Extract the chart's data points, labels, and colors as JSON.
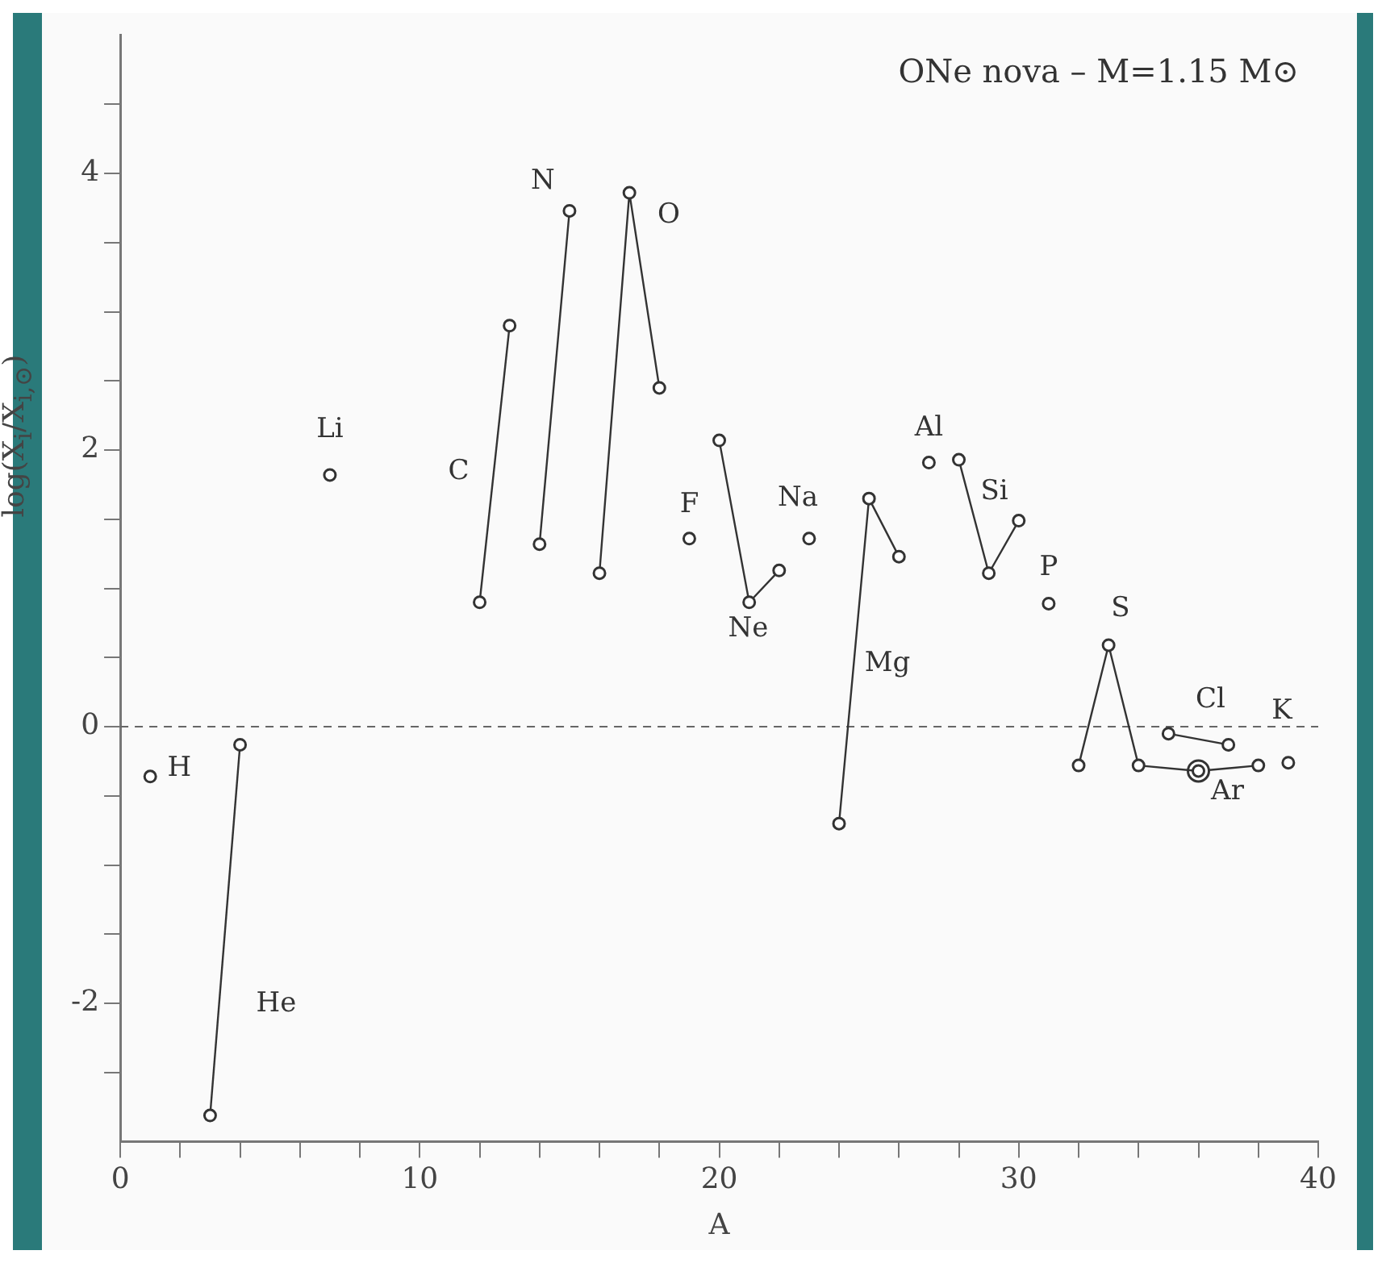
{
  "chart_data": {
    "type": "line",
    "xlabel": "A",
    "ylabel": "log(X$_{i}$/X$_{i,⊙}$)",
    "annotations": [
      "ONe nova – M=1.15 M⊙"
    ],
    "series": [
      {
        "type": "scatter",
        "name": "H",
        "color": "#333333",
        "x": [
          1
        ],
        "values": [
          -0.36
        ]
      },
      {
        "name": "He",
        "color": "#333333",
        "x": [
          3,
          4
        ],
        "values": [
          -2.81,
          -0.13
        ]
      },
      {
        "type": "scatter",
        "name": "Li",
        "color": "#333333",
        "x": [
          7
        ],
        "values": [
          1.82
        ]
      },
      {
        "name": "C",
        "color": "#333333",
        "x": [
          12,
          13
        ],
        "values": [
          0.9,
          2.9
        ]
      },
      {
        "name": "N",
        "color": "#333333",
        "x": [
          14,
          15
        ],
        "values": [
          1.32,
          3.73
        ]
      },
      {
        "name": "O",
        "color": "#333333",
        "x": [
          16,
          17,
          18
        ],
        "values": [
          1.11,
          3.86,
          2.45
        ]
      },
      {
        "type": "scatter",
        "name": "F",
        "color": "#333333",
        "x": [
          19
        ],
        "values": [
          1.36
        ]
      },
      {
        "name": "Ne",
        "color": "#333333",
        "x": [
          20,
          21,
          22
        ],
        "values": [
          2.07,
          0.9,
          1.13
        ]
      },
      {
        "type": "scatter",
        "name": "Na",
        "color": "#333333",
        "x": [
          23
        ],
        "values": [
          1.36
        ]
      },
      {
        "name": "Mg",
        "color": "#333333",
        "x": [
          24,
          25,
          26
        ],
        "values": [
          -0.7,
          1.65,
          1.23
        ]
      },
      {
        "type": "scatter",
        "name": "Al",
        "color": "#333333",
        "x": [
          27
        ],
        "values": [
          1.91
        ]
      },
      {
        "name": "Si",
        "color": "#333333",
        "x": [
          28,
          29,
          30
        ],
        "values": [
          1.93,
          1.11,
          1.49
        ]
      },
      {
        "type": "scatter",
        "name": "P",
        "color": "#333333",
        "x": [
          31
        ],
        "values": [
          0.89
        ]
      },
      {
        "name": "S",
        "color": "#333333",
        "x": [
          32,
          33,
          34,
          36
        ],
        "values": [
          -0.28,
          0.59,
          -0.28,
          -0.32
        ]
      },
      {
        "name": "Cl",
        "color": "#333333",
        "x": [
          35,
          37
        ],
        "values": [
          -0.05,
          -0.13
        ]
      },
      {
        "name": "Ar",
        "color": "#333333",
        "x": [
          36,
          38
        ],
        "values": [
          -0.32,
          -0.28
        ]
      },
      {
        "type": "scatter",
        "name": "K",
        "color": "#333333",
        "x": [
          39
        ],
        "values": [
          -0.26
        ]
      }
    ],
    "xlim": [
      0,
      40
    ],
    "ylim": [
      -3,
      5
    ],
    "xticks": [
      0,
      {
        "value": 2,
        "label": null
      },
      {
        "value": 4,
        "label": null
      },
      {
        "value": 6,
        "label": null
      },
      {
        "value": 8,
        "label": null
      },
      10,
      {
        "value": 12,
        "label": null
      },
      {
        "value": 14,
        "label": null
      },
      {
        "value": 16,
        "label": null
      },
      {
        "value": 18,
        "label": null
      },
      20,
      {
        "value": 22,
        "label": null
      },
      {
        "value": 24,
        "label": null
      },
      {
        "value": 26,
        "label": null
      },
      {
        "value": 28,
        "label": null
      },
      30,
      {
        "value": 32,
        "label": null
      },
      {
        "value": 34,
        "label": null
      },
      {
        "value": 36,
        "label": null
      },
      {
        "value": 38,
        "label": null
      },
      40
    ],
    "yticks": [
      {
        "value": -2.5,
        "label": null
      },
      -2,
      {
        "value": -1.5,
        "label": null
      },
      {
        "value": -1,
        "label": null
      },
      {
        "value": -0.5,
        "label": null
      },
      0,
      {
        "value": 0.5,
        "label": null
      },
      {
        "value": 1,
        "label": null
      },
      {
        "value": 1.5,
        "label": null
      },
      2,
      {
        "value": 2.5,
        "label": null
      },
      {
        "value": 3,
        "label": null
      },
      {
        "value": 3.5,
        "label": null
      },
      4,
      {
        "value": 4.5,
        "label": null
      }
    ],
    "ref_lines": [
      {
        "axis": "y",
        "value": 0,
        "line_style": "dashed",
        "color": "#666666"
      }
    ],
    "grid": false,
    "legend": false,
    "marker": "circle"
  }
}
